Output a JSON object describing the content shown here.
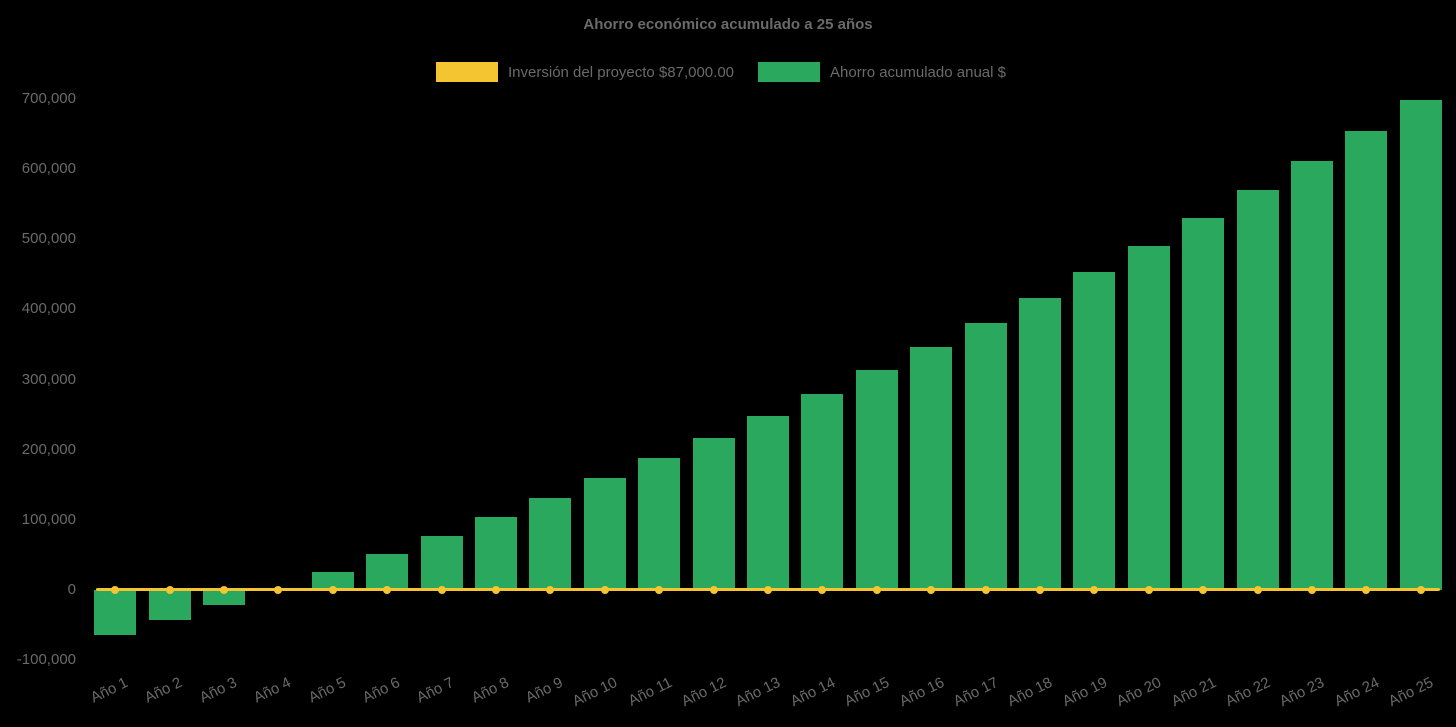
{
  "chart_data": {
    "type": "bar",
    "title": "Ahorro económico acumulado a 25 años",
    "categories": [
      "Año 1",
      "Año 2",
      "Año 3",
      "Año 4",
      "Año 5",
      "Año 6",
      "Año 7",
      "Año 8",
      "Año 9",
      "Año 10",
      "Año 11",
      "Año 12",
      "Año 13",
      "Año 14",
      "Año 15",
      "Año 16",
      "Año 17",
      "Año 18",
      "Año 19",
      "Año 20",
      "Año 21",
      "Año 22",
      "Año 23",
      "Año 24",
      "Año 25"
    ],
    "series": [
      {
        "name": "Ahorro acumulado anual $",
        "type": "bar",
        "color": "#2aa85e",
        "values": [
          -64000,
          -43000,
          -21000,
          2000,
          26000,
          51000,
          77000,
          104000,
          131000,
          159000,
          188000,
          217000,
          248000,
          280000,
          313000,
          346000,
          381000,
          416000,
          453000,
          491000,
          530000,
          570000,
          612000,
          655000,
          698000
        ]
      },
      {
        "name": "Inversión del proyecto $87,000.00",
        "type": "line",
        "color": "#f4c431",
        "constant_value": 0,
        "markers": true
      }
    ],
    "legend": [
      {
        "label": "Inversión del proyecto $87,000.00",
        "color": "#f4c431"
      },
      {
        "label": "Ahorro acumulado anual $",
        "color": "#2aa85e"
      }
    ],
    "legend_position": "top",
    "xlabel": "",
    "ylabel": "",
    "ylim": [
      -100000,
      700000
    ],
    "yticks": [
      -100000,
      0,
      100000,
      200000,
      300000,
      400000,
      500000,
      600000,
      700000
    ],
    "grid": false,
    "background": "#000000",
    "text_color": "#6a6a6a"
  }
}
